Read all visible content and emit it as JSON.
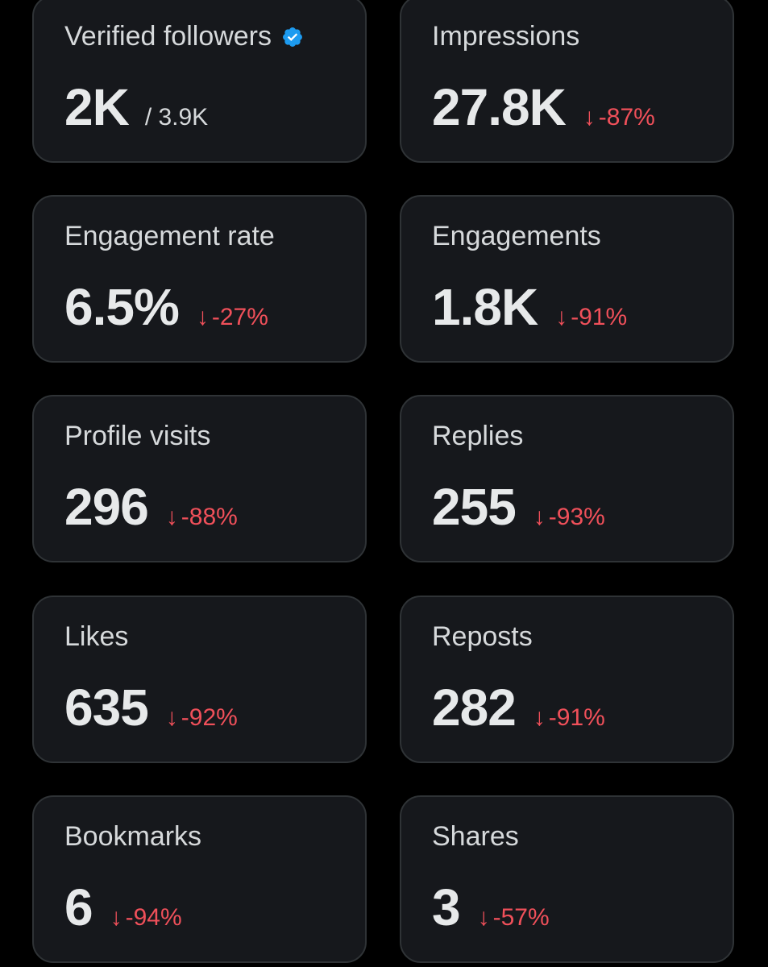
{
  "colors": {
    "background": "#000000",
    "card_background": "#16181c",
    "card_border": "#2f3336",
    "negative_change": "#f0505a",
    "verified_badge": "#1d9bf0"
  },
  "metrics": [
    {
      "label": "Verified followers",
      "value": "2K",
      "total": "/ 3.9K",
      "icon": "verified-badge-icon"
    },
    {
      "label": "Impressions",
      "value": "27.8K",
      "arrow": "↓",
      "change": "-87%"
    },
    {
      "label": "Engagement rate",
      "value": "6.5%",
      "arrow": "↓",
      "change": "-27%"
    },
    {
      "label": "Engagements",
      "value": "1.8K",
      "arrow": "↓",
      "change": "-91%"
    },
    {
      "label": "Profile visits",
      "value": "296",
      "arrow": "↓",
      "change": "-88%"
    },
    {
      "label": "Replies",
      "value": "255",
      "arrow": "↓",
      "change": "-93%"
    },
    {
      "label": "Likes",
      "value": "635",
      "arrow": "↓",
      "change": "-92%"
    },
    {
      "label": "Reposts",
      "value": "282",
      "arrow": "↓",
      "change": "-91%"
    },
    {
      "label": "Bookmarks",
      "value": "6",
      "arrow": "↓",
      "change": "-94%"
    },
    {
      "label": "Shares",
      "value": "3",
      "arrow": "↓",
      "change": "-57%"
    }
  ]
}
